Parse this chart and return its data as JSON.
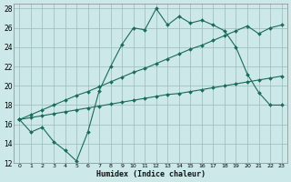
{
  "xlabel": "Humidex (Indice chaleur)",
  "bg_color": "#cce8e8",
  "grid_color": "#99bbbb",
  "line_color": "#1a6b5a",
  "xlim": [
    -0.5,
    23.5
  ],
  "ylim": [
    12,
    28.5
  ],
  "xticks": [
    0,
    1,
    2,
    3,
    4,
    5,
    6,
    7,
    8,
    9,
    10,
    11,
    12,
    13,
    14,
    15,
    16,
    17,
    18,
    19,
    20,
    21,
    22,
    23
  ],
  "yticks": [
    12,
    14,
    16,
    18,
    20,
    22,
    24,
    26,
    28
  ],
  "line1_x": [
    0,
    1,
    2,
    3,
    4,
    5,
    6,
    7,
    8,
    9,
    10,
    11,
    12,
    13,
    14,
    15,
    16,
    17,
    18,
    19,
    20,
    21,
    22,
    23
  ],
  "line1_y": [
    16.5,
    15.2,
    15.7,
    14.2,
    13.3,
    12.2,
    15.2,
    19.5,
    22.0,
    24.3,
    26.0,
    25.8,
    28.0,
    26.3,
    27.2,
    26.5,
    26.8,
    26.3,
    25.7,
    24.0,
    21.2,
    19.3,
    18.0,
    18.0
  ],
  "line2_x": [
    0,
    1,
    2,
    3,
    4,
    5,
    6,
    7,
    8,
    9,
    10,
    11,
    12,
    13,
    14,
    15,
    16,
    17,
    18,
    19,
    20,
    21,
    22,
    23
  ],
  "line2_y": [
    16.5,
    16.7,
    16.9,
    17.1,
    17.3,
    17.5,
    17.7,
    17.9,
    18.1,
    18.3,
    18.5,
    18.7,
    18.9,
    19.1,
    19.2,
    19.4,
    19.6,
    19.8,
    20.0,
    20.2,
    20.4,
    20.6,
    20.8,
    21.0
  ],
  "line3_x": [
    0,
    1,
    2,
    3,
    4,
    5,
    6,
    7,
    8,
    9,
    10,
    11,
    12,
    13,
    14,
    15,
    16,
    17,
    18,
    19,
    20,
    21,
    22,
    23
  ],
  "line3_y": [
    16.5,
    17.0,
    17.5,
    18.0,
    18.5,
    19.0,
    19.4,
    19.9,
    20.4,
    20.9,
    21.4,
    21.8,
    22.3,
    22.8,
    23.3,
    23.8,
    24.2,
    24.7,
    25.2,
    25.7,
    26.2,
    25.4,
    26.0,
    26.3
  ]
}
